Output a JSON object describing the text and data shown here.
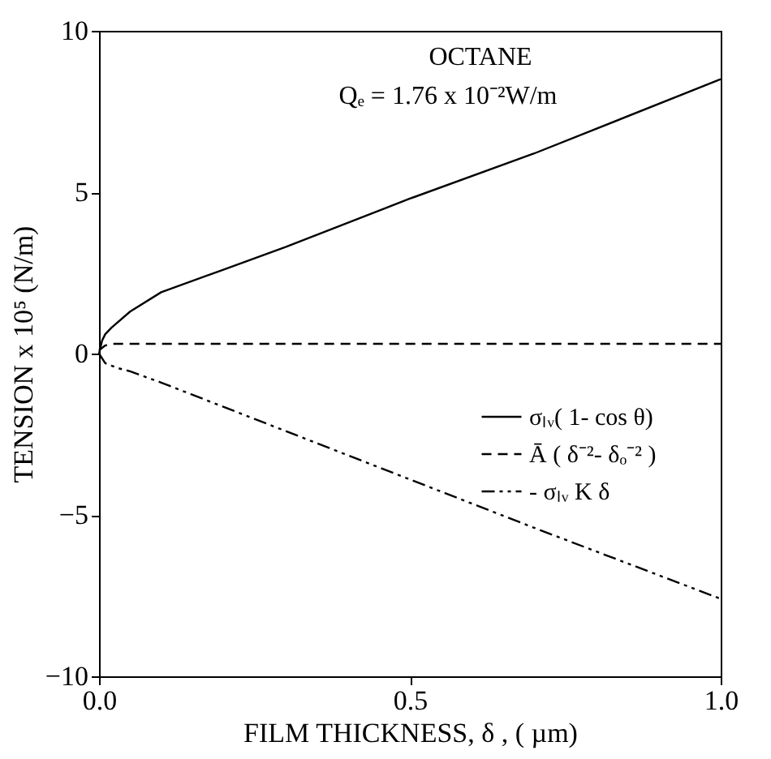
{
  "chart_data": {
    "type": "line",
    "xlabel": "FILM THICKNESS, δ , ( µm)",
    "ylabel": "TENSION x 10⁵ (N/m)",
    "annotations": [
      "OCTANE",
      "Qₑ = 1.76 x 10⁻²W/m"
    ],
    "xlim": [
      0,
      1
    ],
    "xticks": [
      {
        "value": 0,
        "label": "0.0"
      },
      0.5,
      {
        "value": 1,
        "label": "1.0"
      }
    ],
    "ylim": [
      -10,
      10
    ],
    "yticks": [
      -10,
      -5,
      0,
      5,
      10
    ],
    "grid": false,
    "legend": "right",
    "marker": "none",
    "series": [
      {
        "name": "σₗᵥ( 1- cos θ)",
        "color": "#000000",
        "line_style": "solid",
        "x": [
          0,
          0.005,
          0.01,
          0.02,
          0.05,
          0.1,
          0.2,
          0.3,
          0.5,
          0.7,
          1.0
        ],
        "values": [
          0,
          0.4,
          0.6,
          0.8,
          1.3,
          1.9,
          2.6,
          3.3,
          4.8,
          6.2,
          8.5
        ]
      },
      {
        "name": "Ā ( δ⁻²- δₒ⁻² )",
        "color": "#000000",
        "line_style": "dashed",
        "x": [
          0,
          0.01,
          0.02,
          1.0
        ],
        "values": [
          0.1,
          0.25,
          0.3,
          0.3
        ]
      },
      {
        "name": "- σₗᵥ K δ",
        "color": "#000000",
        "line_style": "dashdot",
        "x": [
          0,
          0.01,
          0.03,
          0.05,
          0.1,
          0.3,
          0.5,
          0.7,
          1.0
        ],
        "values": [
          0,
          -0.3,
          -0.45,
          -0.55,
          -0.9,
          -2.4,
          -3.9,
          -5.4,
          -7.6
        ]
      }
    ]
  }
}
